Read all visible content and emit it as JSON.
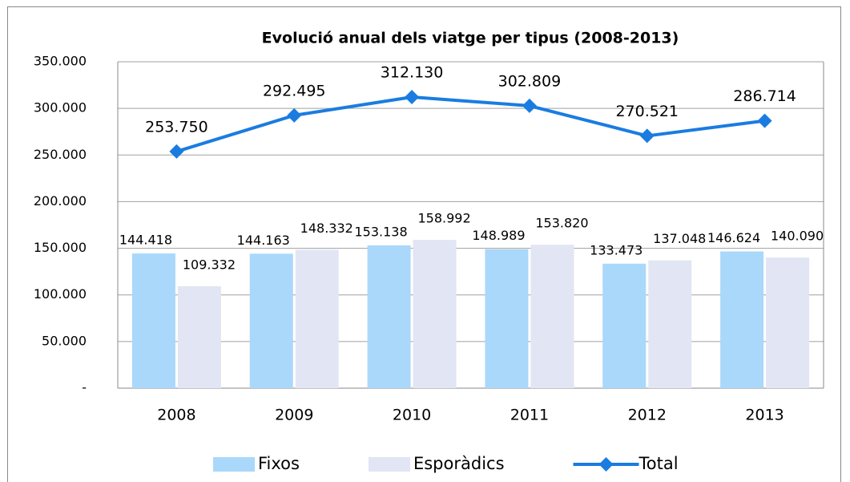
{
  "chart_data": {
    "type": "bar",
    "title": "Evolució anual dels viatge per tipus (2008-2013)",
    "categories": [
      "2008",
      "2009",
      "2010",
      "2011",
      "2012",
      "2013"
    ],
    "series": [
      {
        "name": "Fixos",
        "color": "#a9d8fb",
        "type": "bar",
        "values": [
          144418,
          144163,
          153138,
          148989,
          133473,
          146624
        ],
        "value_labels": [
          "144.418",
          "144.163",
          "153.138",
          "148.989",
          "133.473",
          "146.624"
        ]
      },
      {
        "name": "Esporàdics",
        "color": "#e2e5f3",
        "type": "bar",
        "values": [
          109332,
          148332,
          158992,
          153820,
          137048,
          140090
        ],
        "value_labels": [
          "109.332",
          "148.332",
          "158.992",
          "153.820",
          "137.048",
          "140.090"
        ]
      },
      {
        "name": "Total",
        "color": "#1a7ce0",
        "type": "line",
        "values": [
          253750,
          292495,
          312130,
          302809,
          270521,
          286714
        ],
        "value_labels": [
          "253.750",
          "292.495",
          "312.130",
          "302.809",
          "270.521",
          "286.714"
        ]
      }
    ],
    "ylim": [
      0,
      350000
    ],
    "yticks": [
      {
        "value": 0,
        "label": "-"
      },
      {
        "value": 50000,
        "label": "50.000"
      },
      {
        "value": 100000,
        "label": "100.000"
      },
      {
        "value": 150000,
        "label": "150.000"
      },
      {
        "value": 200000,
        "label": "200.000"
      },
      {
        "value": 250000,
        "label": "250.000"
      },
      {
        "value": 300000,
        "label": "300.000"
      },
      {
        "value": 350000,
        "label": "350.000"
      }
    ],
    "grid": true,
    "legend": "bottom"
  }
}
